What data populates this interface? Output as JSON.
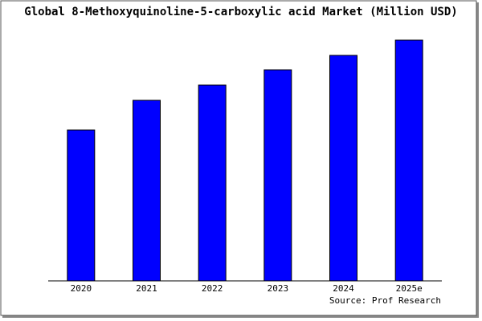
{
  "chart_data": {
    "type": "bar",
    "title": "Global 8-Methoxyquinoline-5-carboxylic acid Market (Million USD)",
    "categories": [
      "2020",
      "2021",
      "2022",
      "2023",
      "2024",
      "2025e"
    ],
    "values": [
      188,
      225,
      244,
      263,
      281,
      300
    ],
    "color": "#0000ff",
    "ylim": [
      0,
      310
    ],
    "source": "Source: Prof Research"
  }
}
